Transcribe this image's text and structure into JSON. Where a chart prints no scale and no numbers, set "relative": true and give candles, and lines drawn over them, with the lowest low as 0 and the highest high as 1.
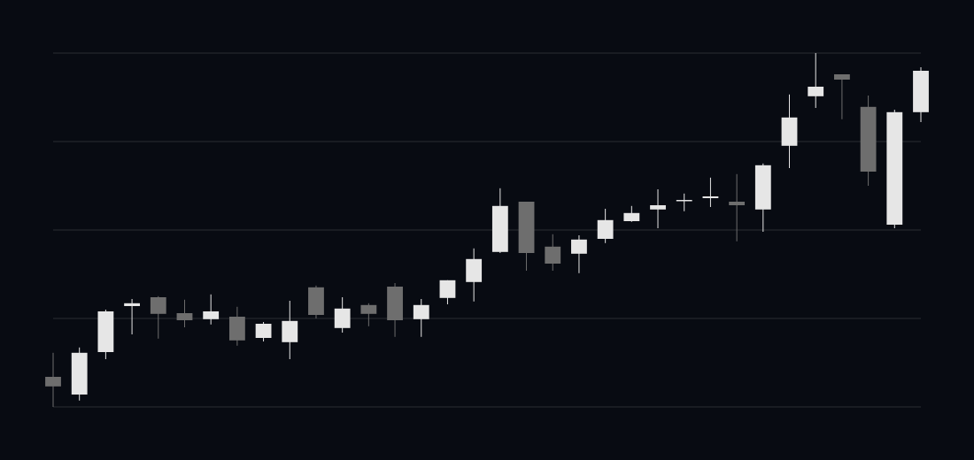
{
  "chart_data": {
    "type": "candlestick",
    "relative": true,
    "grid": true,
    "categories": [
      null,
      null,
      null,
      null,
      null,
      null,
      null,
      null,
      null,
      null,
      null,
      null,
      null,
      null,
      null,
      null,
      null,
      null,
      null,
      null,
      null,
      null,
      null,
      null,
      null,
      null,
      null,
      null,
      null,
      null,
      null,
      null,
      null,
      null
    ],
    "ohlc": [
      [
        0.085,
        0.153,
        0,
        0.058
      ],
      [
        0.035,
        0.168,
        0.018,
        0.153
      ],
      [
        0.155,
        0.275,
        0.135,
        0.27
      ],
      [
        0.285,
        0.305,
        0.205,
        0.293
      ],
      [
        0.31,
        0.313,
        0.193,
        0.263
      ],
      [
        0.265,
        0.303,
        0.225,
        0.245
      ],
      [
        0.248,
        0.318,
        0.233,
        0.27
      ],
      [
        0.255,
        0.283,
        0.173,
        0.188
      ],
      [
        0.195,
        0.24,
        0.185,
        0.235
      ],
      [
        0.183,
        0.3,
        0.135,
        0.243
      ],
      [
        0.338,
        0.343,
        0.25,
        0.26
      ],
      [
        0.223,
        0.31,
        0.21,
        0.278
      ],
      [
        0.288,
        0.293,
        0.228,
        0.263
      ],
      [
        0.34,
        0.35,
        0.198,
        0.245
      ],
      [
        0.248,
        0.305,
        0.198,
        0.288
      ],
      [
        0.308,
        0.358,
        0.29,
        0.358
      ],
      [
        0.353,
        0.448,
        0.298,
        0.418
      ],
      [
        0.438,
        0.618,
        0.435,
        0.568
      ],
      [
        0.58,
        0.58,
        0.385,
        0.435
      ],
      [
        0.453,
        0.488,
        0.385,
        0.405
      ],
      [
        0.433,
        0.485,
        0.378,
        0.473
      ],
      [
        0.475,
        0.56,
        0.463,
        0.528
      ],
      [
        0.525,
        0.568,
        0.523,
        0.548
      ],
      [
        0.558,
        0.615,
        0.505,
        0.57
      ],
      [
        0.583,
        0.603,
        0.553,
        0.585
      ],
      [
        0.59,
        0.648,
        0.565,
        0.595
      ],
      [
        0.58,
        0.658,
        0.468,
        0.57
      ],
      [
        0.558,
        0.688,
        0.495,
        0.683
      ],
      [
        0.738,
        0.883,
        0.675,
        0.818
      ],
      [
        0.878,
        1,
        0.845,
        0.905
      ],
      [
        0.94,
        0.94,
        0.813,
        0.925
      ],
      [
        0.848,
        0.88,
        0.625,
        0.665
      ],
      [
        0.515,
        0.84,
        0.505,
        0.833
      ],
      [
        0.833,
        0.96,
        0.805,
        0.95
      ]
    ],
    "colors": [
      "#6e6e6e",
      "#e6e6e6",
      "#e6e6e6",
      "#e6e6e6",
      "#6e6e6e",
      "#6e6e6e",
      "#e6e6e6",
      "#6e6e6e",
      "#e6e6e6",
      "#e6e6e6",
      "#6e6e6e",
      "#e6e6e6",
      "#6e6e6e",
      "#6e6e6e",
      "#e6e6e6",
      "#e6e6e6",
      "#e6e6e6",
      "#e6e6e6",
      "#6e6e6e",
      "#6e6e6e",
      "#e6e6e6",
      "#e6e6e6",
      "#e6e6e6",
      "#e6e6e6",
      "#e6e6e6",
      "#e6e6e6",
      "#6e6e6e",
      "#e6e6e6",
      "#e6e6e6",
      "#e6e6e6",
      "#6e6e6e",
      "#6e6e6e",
      "#e6e6e6",
      "#e6e6e6"
    ]
  }
}
